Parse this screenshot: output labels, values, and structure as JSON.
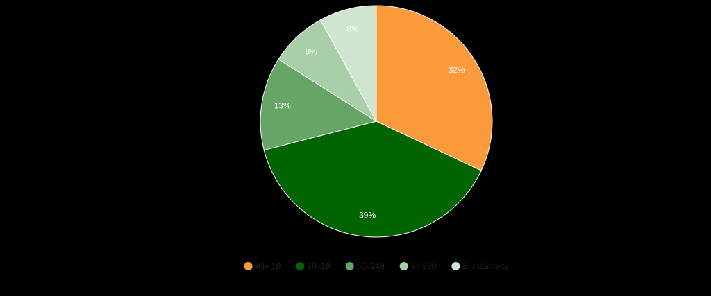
{
  "chart_data": {
    "type": "pie",
    "categories": [
      "Alle 10",
      "10–19",
      "50–249",
      "Yli 250",
      "Ei määritelty"
    ],
    "values": [
      32,
      39,
      13,
      8,
      8
    ],
    "value_labels": [
      "32%",
      "39%",
      "13%",
      "8%",
      "8%"
    ],
    "colors": [
      "#fa9a3a",
      "#006400",
      "#66a566",
      "#a9cfa9",
      "#cfe5cf"
    ],
    "legend": "bottom"
  }
}
